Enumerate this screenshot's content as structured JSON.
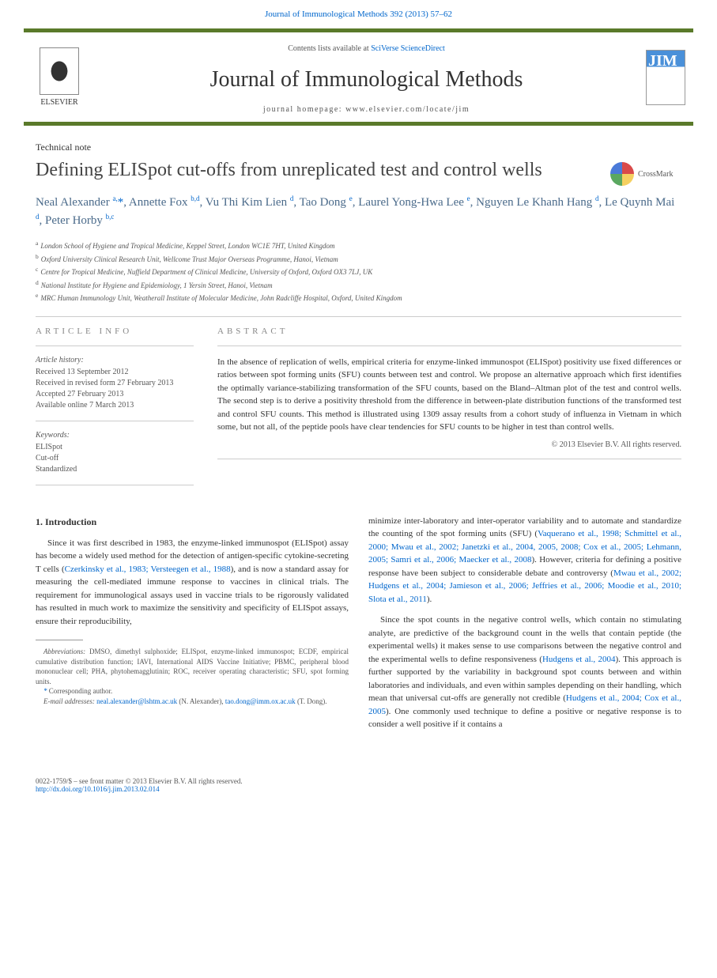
{
  "header": {
    "journal_link": "Journal of Immunological Methods 392 (2013) 57–62"
  },
  "masthead": {
    "contents_prefix": "Contents lists available at ",
    "contents_link": "SciVerse ScienceDirect",
    "journal_name": "Journal of Immunological Methods",
    "homepage": "journal homepage: www.elsevier.com/locate/jim",
    "publisher": "ELSEVIER",
    "cover_abbrev": "JIM"
  },
  "article": {
    "type": "Technical note",
    "title": "Defining ELISpot cut-offs from unreplicated test and control wells",
    "crossmark": "CrossMark",
    "authors_html": "Neal Alexander <sup>a,</sup><span class='corr-star'>*</span>, Annette Fox <sup>b,d</sup>, Vu Thi Kim Lien <sup>d</sup>, Tao Dong <sup>e</sup>, Laurel Yong-Hwa Lee <sup>e</sup>, Nguyen Le Khanh Hang <sup>d</sup>, Le Quynh Mai <sup>d</sup>, Peter Horby <sup>b,c</sup>",
    "affiliations": [
      {
        "sup": "a",
        "text": "London School of Hygiene and Tropical Medicine, Keppel Street, London WC1E 7HT, United Kingdom"
      },
      {
        "sup": "b",
        "text": "Oxford University Clinical Research Unit, Wellcome Trust Major Overseas Programme, Hanoi, Vietnam"
      },
      {
        "sup": "c",
        "text": "Centre for Tropical Medicine, Nuffield Department of Clinical Medicine, University of Oxford, Oxford OX3 7LJ, UK"
      },
      {
        "sup": "d",
        "text": "National Institute for Hygiene and Epidemiology, 1 Yersin Street, Hanoi, Vietnam"
      },
      {
        "sup": "e",
        "text": "MRC Human Immunology Unit, Weatherall Institute of Molecular Medicine, John Radcliffe Hospital, Oxford, United Kingdom"
      }
    ]
  },
  "info": {
    "heading": "ARTICLE INFO",
    "history_label": "Article history:",
    "history": "Received 13 September 2012\nReceived in revised form 27 February 2013\nAccepted 27 February 2013\nAvailable online 7 March 2013",
    "keywords_label": "Keywords:",
    "keywords": "ELISpot\nCut-off\nStandardized"
  },
  "abstract": {
    "heading": "ABSTRACT",
    "text": "In the absence of replication of wells, empirical criteria for enzyme-linked immunospot (ELISpot) positivity use fixed differences or ratios between spot forming units (SFU) counts between test and control. We propose an alternative approach which first identifies the optimally variance-stabilizing transformation of the SFU counts, based on the Bland–Altman plot of the test and control wells. The second step is to derive a positivity threshold from the difference in between-plate distribution functions of the transformed test and control SFU counts. This method is illustrated using 1309 assay results from a cohort study of influenza in Vietnam in which some, but not all, of the peptide pools have clear tendencies for SFU counts to be higher in test than control wells.",
    "copyright": "© 2013 Elsevier B.V. All rights reserved."
  },
  "intro": {
    "heading": "1. Introduction",
    "para1_a": "Since it was first described in 1983, the enzyme-linked immunospot (ELISpot) assay has become a widely used method for the detection of antigen-specific cytokine-secreting T cells (",
    "para1_link1": "Czerkinsky et al., 1983; Versteegen et al., 1988",
    "para1_b": "), and is now a standard assay for measuring the cell-mediated immune response to vaccines in clinical trials. The requirement for immunological assays used in vaccine trials to be rigorously validated has resulted in much work to maximize the sensitivity and specificity of ELISpot assays, ensure their reproducibility,",
    "para1_c": "minimize inter-laboratory and inter-operator variability and to automate and standardize the counting of the spot forming units (SFU) (",
    "para1_link2": "Vaquerano et al., 1998; Schmittel et al., 2000; Mwau et al., 2002; Janetzki et al., 2004, 2005, 2008; Cox et al., 2005; Lehmann, 2005; Samri et al., 2006; Maecker et al., 2008",
    "para1_d": "). However, criteria for defining a positive response have been subject to considerable debate and controversy (",
    "para1_link3": "Mwau et al., 2002; Hudgens et al., 2004; Jamieson et al., 2006; Jeffries et al., 2006; Moodie et al., 2010; Slota et al., 2011",
    "para1_e": ").",
    "para2_a": "Since the spot counts in the negative control wells, which contain no stimulating analyte, are predictive of the background count in the wells that contain peptide (the experimental wells) it makes sense to use comparisons between the negative control and the experimental wells to define responsiveness (",
    "para2_link1": "Hudgens et al., 2004",
    "para2_b": "). This approach is further supported by the variability in background spot counts between and within laboratories and individuals, and even within samples depending on their handling, which mean that universal cut-offs are generally not credible (",
    "para2_link2": "Hudgens et al., 2004; Cox et al., 2005",
    "para2_c": "). One commonly used technique to define a positive or negative response is to consider a well positive if it contains a"
  },
  "footnotes": {
    "abbrev_label": "Abbreviations:",
    "abbrev": " DMSO, dimethyl sulphoxide; ELISpot, enzyme-linked immunospot; ECDF, empirical cumulative distribution function; IAVI, International AIDS Vaccine Initiative; PBMC, peripheral blood mononuclear cell; PHA, phytohemagglutinin; ROC, receiver operating characteristic; SFU, spot forming units.",
    "corr": " Corresponding author.",
    "email_label": "E-mail addresses:",
    "email1": "neal.alexander@lshtm.ac.uk",
    "email1_who": " (N. Alexander), ",
    "email2": "tao.dong@imm.ox.ac.uk",
    "email2_who": " (T. Dong)."
  },
  "footer": {
    "front": "0022-1759/$ – see front matter © 2013 Elsevier B.V. All rights reserved.",
    "doi": "http://dx.doi.org/10.1016/j.jim.2013.02.014"
  },
  "colors": {
    "bar": "#5a7a2a",
    "link": "#0066cc",
    "author": "#4a6a8a"
  }
}
